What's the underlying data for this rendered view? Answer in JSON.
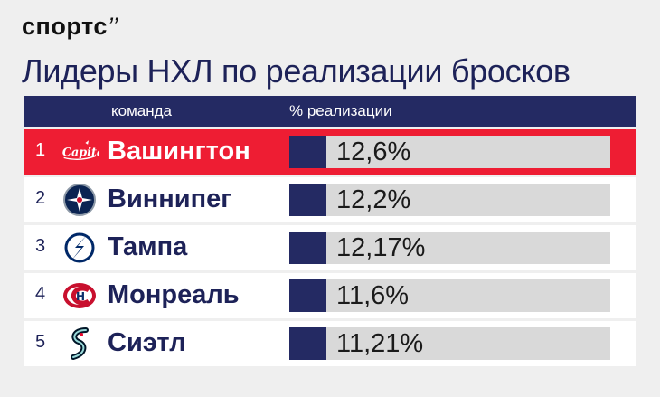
{
  "brand": {
    "name": "спортс",
    "mark": "’’"
  },
  "title": "Лидеры НХЛ по реализации бросков",
  "header": {
    "team_col": "команда",
    "pct_col": "% реализации"
  },
  "colors": {
    "navy": "#242a63",
    "highlight": "#ee1d33",
    "bar_bg": "#d9d9d9",
    "background": "#efefef"
  },
  "chart_data": {
    "type": "table",
    "columns": [
      "команда",
      "% реализации"
    ],
    "rows": [
      {
        "rank": "1",
        "team": "Вашингтон",
        "logo": "washington-capitals-logo",
        "value": 12.6,
        "label": "12,6%",
        "highlight": true
      },
      {
        "rank": "2",
        "team": "Виннипег",
        "logo": "winnipeg-jets-logo",
        "value": 12.2,
        "label": "12,2%",
        "highlight": false
      },
      {
        "rank": "3",
        "team": "Тампа",
        "logo": "tampa-bay-lightning-logo",
        "value": 12.17,
        "label": "12,17%",
        "highlight": false
      },
      {
        "rank": "4",
        "team": "Монреаль",
        "logo": "montreal-canadiens-logo",
        "value": 11.6,
        "label": "11,6%",
        "highlight": false
      },
      {
        "rank": "5",
        "team": "Сиэтл",
        "logo": "seattle-kraken-logo",
        "value": 11.21,
        "label": "11,21%",
        "highlight": false
      }
    ]
  }
}
